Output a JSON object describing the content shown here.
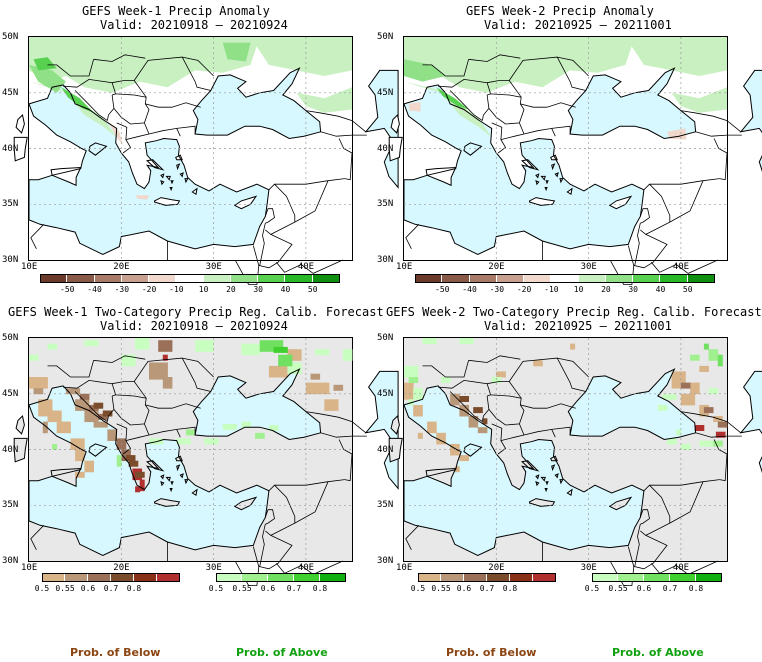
{
  "panels": [
    {
      "title": "GEFS Week-1 Precip Anomaly",
      "valid": "Valid: 20210918 – 20210924"
    },
    {
      "title": "GEFS Week-2 Precip Anomaly",
      "valid": "Valid: 20210925 – 20211001"
    },
    {
      "title": "GEFS Week-1 Two-Category Precip Reg. Calib. Forecast",
      "valid": "Valid: 20210918 – 20210924"
    },
    {
      "title": "GEFS Week-2 Two-Category Precip Reg. Calib. Forecast",
      "valid": "Valid: 20210925 – 20211001"
    }
  ],
  "axes": {
    "lat_labels": [
      "50N",
      "45N",
      "40N",
      "35N",
      "30N"
    ],
    "lon_labels": [
      "10E",
      "20E",
      "30E",
      "40E"
    ]
  },
  "anomaly_colorbar": {
    "ticks": [
      "-50",
      "-40",
      "-30",
      "-20",
      "-10",
      "10",
      "20",
      "30",
      "40",
      "50"
    ],
    "colors": [
      "#6b3a2a",
      "#8a5a48",
      "#a87a68",
      "#c8a090",
      "#f0d8cc",
      "#ffffff",
      "#c8f0c0",
      "#90e088",
      "#58d050",
      "#28b828",
      "#109010"
    ]
  },
  "prob_colorbars": {
    "below": {
      "ticks": [
        "0.5",
        "0.55",
        "0.6",
        "0.7",
        "0.8"
      ],
      "colors": [
        "#d8b488",
        "#b89878",
        "#9a7058",
        "#7a4c2c",
        "#8a3018",
        "#b03030"
      ],
      "label": "Prob. of Below",
      "label_color": "#8b4513"
    },
    "above": {
      "ticks": [
        "0.5",
        "0.55",
        "0.6",
        "0.7",
        "0.8"
      ],
      "colors": [
        "#c8ffc0",
        "#a0f090",
        "#70e060",
        "#40d030",
        "#10b010"
      ],
      "label": "Prob. of Above",
      "label_color": "#10a010"
    }
  },
  "map_colors": {
    "sea": "#d8f8ff",
    "land_gray": "#e8e8e8",
    "coast": "#000000"
  }
}
